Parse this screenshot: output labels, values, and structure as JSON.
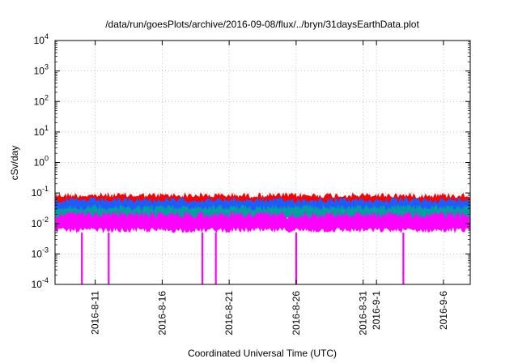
{
  "chart_data": {
    "type": "line",
    "title": "/data/run/goesPlots/archive/2016-09-08/flux/../bryn/31daysEarthData.plot",
    "xlabel": "Coordinated Universal Time (UTC)",
    "ylabel": "cSv/day",
    "y_scale": "log",
    "ylim": [
      0.0001,
      10000
    ],
    "xlim": [
      "2016-08-08",
      "2016-09-08"
    ],
    "grid": true,
    "x_ticks": [
      "2016-8-11",
      "2016-8-16",
      "2016-8-21",
      "2016-8-26",
      "2016-8-31",
      "2016-9-1",
      "2016-9-6"
    ],
    "y_ticks": [
      {
        "base": "10",
        "exp": "-4",
        "value": 0.0001
      },
      {
        "base": "10",
        "exp": "-3",
        "value": 0.001
      },
      {
        "base": "10",
        "exp": "-2",
        "value": 0.01
      },
      {
        "base": "10",
        "exp": "-1",
        "value": 0.1
      },
      {
        "base": "10",
        "exp": "0",
        "value": 1
      },
      {
        "base": "10",
        "exp": "1",
        "value": 10
      },
      {
        "base": "10",
        "exp": "2",
        "value": 100
      },
      {
        "base": "10",
        "exp": "3",
        "value": 1000
      },
      {
        "base": "10",
        "exp": "4",
        "value": 10000
      }
    ],
    "series": [
      {
        "color": "#ff0000",
        "band_low": 0.03,
        "band_high": 0.1
      },
      {
        "color": "#1e5cff",
        "band_low": 0.02,
        "band_high": 0.07
      },
      {
        "color": "#00a0a0",
        "band_low": 0.012,
        "band_high": 0.04
      },
      {
        "color": "#ff00ff",
        "band_low": 0.005,
        "band_high": 0.025
      }
    ],
    "dropouts": [
      "2016-08-10",
      "2016-08-12",
      "2016-08-19",
      "2016-08-20",
      "2016-08-26",
      "2016-09-03"
    ]
  }
}
